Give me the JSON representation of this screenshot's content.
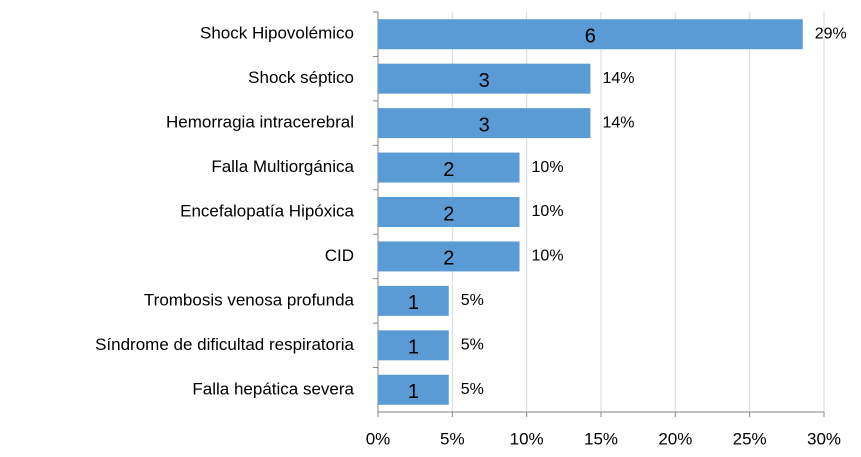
{
  "chart_data": {
    "type": "barh",
    "categories": [
      "Shock Hipovolémico",
      "Shock séptico",
      "Hemorragia intracerebral",
      "Falla Multiorgánica",
      "Encefalopatía Hipóxica",
      "CID",
      "Trombosis venosa profunda",
      "Síndrome de dificultad respiratoria",
      "Falla hepática severa"
    ],
    "values": [
      28.57,
      14.29,
      14.29,
      9.52,
      9.52,
      9.52,
      4.76,
      4.76,
      4.76
    ],
    "value_labels": [
      "29%",
      "14%",
      "14%",
      "10%",
      "10%",
      "10%",
      "5%",
      "5%",
      "5%"
    ],
    "counts": [
      6,
      3,
      3,
      2,
      2,
      2,
      1,
      1,
      1
    ],
    "color": "#5b9bd5",
    "xlim": [
      0,
      30
    ],
    "xticks": [
      {
        "value": 0,
        "label": "0%"
      },
      {
        "value": 5,
        "label": "5%"
      },
      {
        "value": 10,
        "label": "10%"
      },
      {
        "value": 15,
        "label": "15%"
      },
      {
        "value": 20,
        "label": "20%"
      },
      {
        "value": 25,
        "label": "25%"
      },
      {
        "value": 30,
        "label": "30%"
      }
    ],
    "grid": true
  }
}
